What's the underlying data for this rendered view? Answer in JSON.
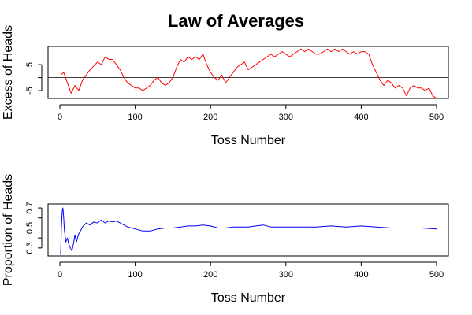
{
  "title": "Law of Averages",
  "chart_data": [
    {
      "type": "line",
      "ylabel": "Excess of Heads",
      "xlabel": "Toss Number",
      "xlim": [
        0,
        500
      ],
      "ylim": [
        -8,
        12
      ],
      "xticks": [
        0,
        100,
        200,
        300,
        400,
        500
      ],
      "yticks": [
        -5,
        0,
        5
      ],
      "ytick_labels": [
        "-5",
        "",
        "5"
      ],
      "reference_line": 0,
      "series": [
        {
          "color": "#ff0000",
          "x": [
            1,
            5,
            10,
            15,
            20,
            25,
            30,
            40,
            50,
            55,
            60,
            65,
            70,
            75,
            80,
            85,
            90,
            95,
            100,
            105,
            110,
            115,
            120,
            125,
            130,
            135,
            140,
            145,
            150,
            155,
            160,
            165,
            170,
            175,
            180,
            185,
            190,
            195,
            200,
            205,
            210,
            215,
            220,
            225,
            230,
            235,
            240,
            245,
            250,
            255,
            260,
            265,
            270,
            275,
            280,
            285,
            290,
            295,
            300,
            305,
            310,
            315,
            320,
            325,
            330,
            335,
            340,
            345,
            350,
            355,
            360,
            365,
            370,
            375,
            380,
            385,
            390,
            395,
            400,
            405,
            410,
            415,
            420,
            425,
            430,
            435,
            440,
            445,
            450,
            455,
            460,
            465,
            470,
            475,
            480,
            485,
            490,
            495,
            500
          ],
          "y": [
            1,
            2,
            -2,
            -6,
            -3,
            -5,
            -1,
            3,
            6,
            5,
            8,
            7,
            7,
            5,
            3,
            0,
            -2,
            -3,
            -4,
            -4,
            -5,
            -4,
            -3,
            -1,
            0,
            -2,
            -3,
            -2,
            0,
            4,
            7,
            6,
            8,
            7,
            8,
            7,
            9,
            5,
            2,
            0,
            -1,
            1,
            -2,
            0,
            2,
            4,
            5,
            6,
            3,
            4,
            5,
            6,
            7,
            8,
            9,
            8,
            9,
            10,
            9,
            8,
            9,
            10,
            11,
            10,
            11,
            10,
            9,
            9,
            10,
            11,
            10,
            11,
            10,
            11,
            10,
            9,
            10,
            9,
            10,
            10,
            9,
            5,
            2,
            -1,
            -3,
            -1,
            -2,
            -4,
            -3,
            -4,
            -7,
            -4,
            -3,
            -4,
            -4,
            -5,
            -4,
            -7,
            -8
          ]
        }
      ]
    },
    {
      "type": "line",
      "ylabel": "Proportion of Heads",
      "xlabel": "Toss Number",
      "xlim": [
        0,
        500
      ],
      "ylim": [
        0.22,
        0.74
      ],
      "xticks": [
        0,
        100,
        200,
        300,
        400,
        500
      ],
      "yticks": [
        0.3,
        0.4,
        0.5,
        0.6,
        0.7
      ],
      "ytick_labels": [
        "0.3",
        "",
        "0.5",
        "",
        "0.7"
      ],
      "reference_line": 0.5,
      "series": [
        {
          "color": "#0000ff",
          "x": [
            1,
            2,
            3,
            4,
            5,
            6,
            8,
            10,
            12,
            14,
            16,
            18,
            20,
            22,
            25,
            28,
            30,
            35,
            40,
            45,
            50,
            55,
            60,
            65,
            70,
            75,
            80,
            90,
            100,
            110,
            120,
            130,
            140,
            150,
            160,
            170,
            180,
            190,
            200,
            210,
            220,
            230,
            240,
            250,
            260,
            270,
            280,
            290,
            300,
            320,
            340,
            360,
            380,
            400,
            420,
            440,
            460,
            480,
            500
          ],
          "y": [
            0.23,
            0.5,
            0.66,
            0.7,
            0.61,
            0.48,
            0.36,
            0.4,
            0.33,
            0.3,
            0.27,
            0.34,
            0.43,
            0.36,
            0.44,
            0.48,
            0.51,
            0.55,
            0.53,
            0.56,
            0.55,
            0.58,
            0.55,
            0.57,
            0.56,
            0.57,
            0.55,
            0.51,
            0.49,
            0.47,
            0.47,
            0.49,
            0.5,
            0.5,
            0.51,
            0.52,
            0.52,
            0.53,
            0.52,
            0.5,
            0.5,
            0.51,
            0.51,
            0.51,
            0.52,
            0.53,
            0.51,
            0.51,
            0.51,
            0.51,
            0.51,
            0.52,
            0.51,
            0.52,
            0.51,
            0.5,
            0.5,
            0.5,
            0.49
          ]
        }
      ]
    }
  ]
}
